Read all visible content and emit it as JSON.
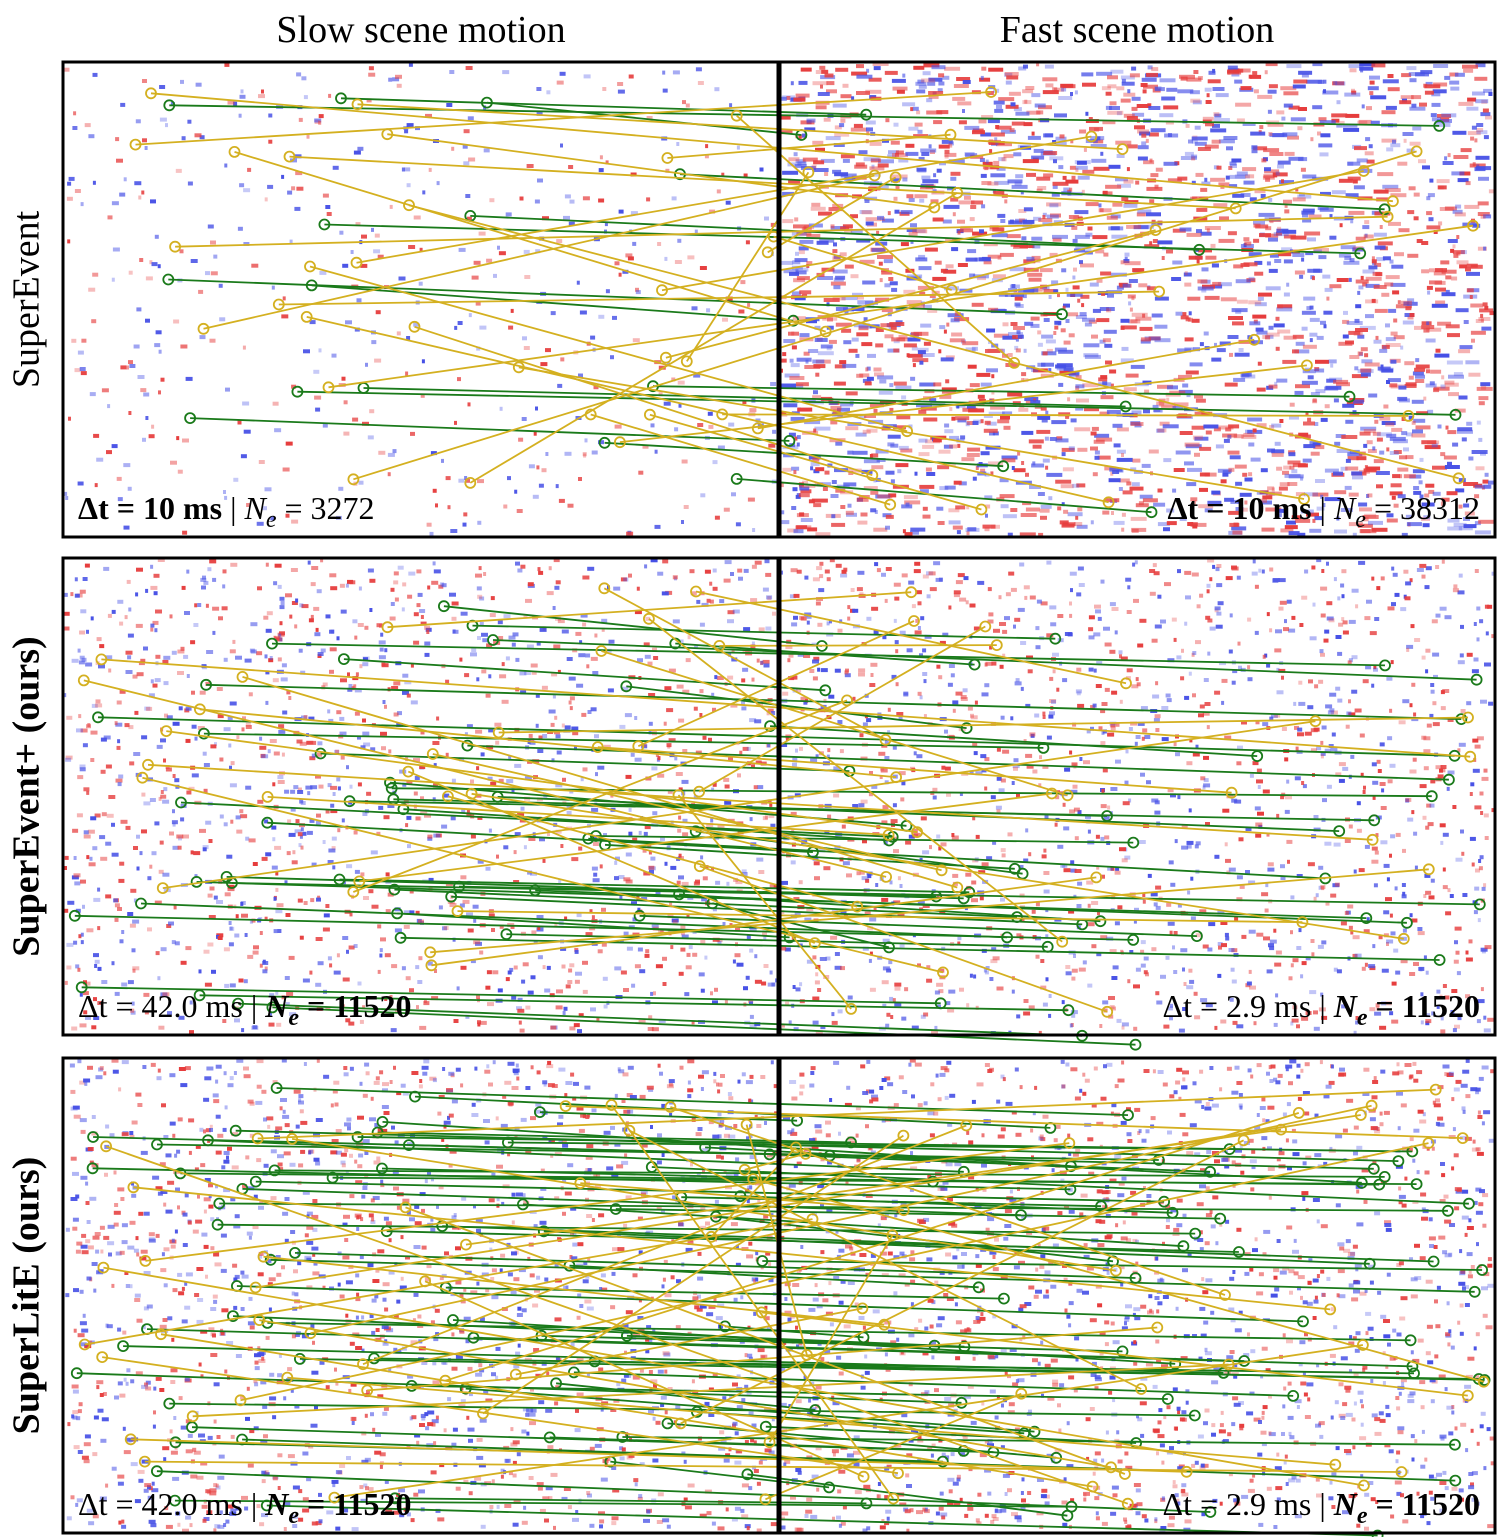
{
  "columns": [
    "Slow scene motion",
    "Fast scene motion"
  ],
  "rows": [
    {
      "label": "SuperEvent",
      "label_bold": false,
      "left": {
        "dt": "Δt = 10 ms",
        "sep": "|",
        "ne_symbol": "N",
        "ne_subscript": "e",
        "ne_value": "= 3272",
        "bold": "dt"
      },
      "right": {
        "dt": "Δt = 10 ms",
        "sep": "|",
        "ne_symbol": "N",
        "ne_subscript": "e",
        "ne_value": "= 38312",
        "bold": "dt"
      }
    },
    {
      "label": "SuperEvent+ (ours)",
      "label_bold": true,
      "left": {
        "dt": "Δt = 42.0 ms",
        "sep": "|",
        "ne_symbol": "N",
        "ne_subscript": "e",
        "ne_value": "= 11520",
        "bold": "ne"
      },
      "right": {
        "dt": "Δt = 2.9 ms",
        "sep": "|",
        "ne_symbol": "N",
        "ne_subscript": "e",
        "ne_value": "= 11520",
        "bold": "ne"
      }
    },
    {
      "label": "SuperLitE (ours)",
      "label_bold": true,
      "left": {
        "dt": "Δt = 42.0 ms",
        "sep": "|",
        "ne_symbol": "N",
        "ne_subscript": "e",
        "ne_value": "= 11520",
        "bold": "ne"
      },
      "right": {
        "dt": "Δt = 2.9 ms",
        "sep": "|",
        "ne_symbol": "N",
        "ne_subscript": "e",
        "ne_value": "= 11520",
        "bold": "ne"
      }
    }
  ]
}
